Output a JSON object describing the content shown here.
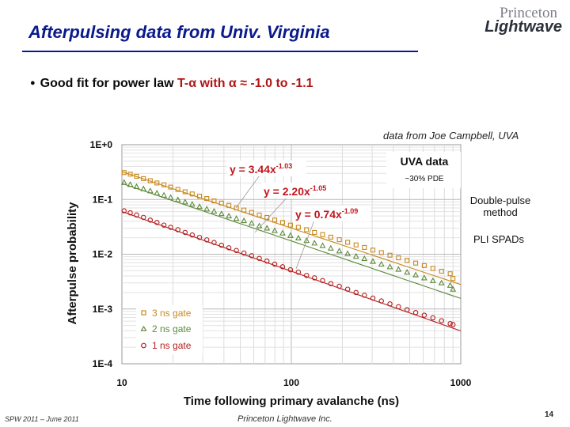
{
  "slide": {
    "title": "Afterpulsing data from Univ. Virginia",
    "logo_line1": "Princeton",
    "logo_line2": "Lightwave",
    "bullet_prefix": "Good fit for power law ",
    "bullet_formula": "T-α with α ≈ -1.0 to -1.1",
    "credit": "data from Joe Campbell, UVA",
    "method": "Double-pulse method",
    "spads": "PLI SPADs",
    "footer_left": "SPW 2011 – June 2011",
    "footer_center": "Princeton Lightwave Inc.",
    "page_number": "14"
  },
  "colors": {
    "title": "#0a1a8c",
    "series_3ns": "#c8891e",
    "series_2ns": "#5c8a38",
    "series_1ns": "#b52020",
    "annotation": "#c0161e"
  },
  "chart_data": {
    "type": "scatter",
    "title": "UVA data",
    "subtitle": "~30% PDE",
    "xlabel": "Time following primary avalanche (ns)",
    "ylabel": "Afterpulse probability",
    "xscale": "log",
    "yscale": "log",
    "xlim": [
      10,
      1000
    ],
    "ylim": [
      0.0001,
      1
    ],
    "xticks": [
      10,
      100,
      1000
    ],
    "xtick_labels": [
      "10",
      "100",
      "1000"
    ],
    "yticks": [
      1,
      0.1,
      0.01,
      0.001,
      0.0001
    ],
    "ytick_labels": [
      "1E+0",
      "1E-1",
      "1E-2",
      "1E-3",
      "1E-4"
    ],
    "grid": true,
    "legend_position": "bottom-left",
    "series": [
      {
        "name": "3 ns gate",
        "marker": "square",
        "fit_label": "y = 3.44x",
        "fit_exponent": "-1.03",
        "fit_a": 3.44,
        "fit_b": -1.03,
        "x": [
          10.3,
          11.2,
          12.2,
          13.4,
          14.7,
          16.1,
          17.7,
          19.4,
          21.4,
          23.6,
          26.0,
          28.7,
          31.7,
          35.0,
          38.7,
          42.8,
          47.4,
          52.5,
          58.3,
          64.7,
          71.8,
          79.8,
          88.8,
          98.8,
          110,
          123,
          137,
          153,
          171,
          192,
          215,
          241,
          270,
          303,
          340,
          382,
          429,
          482,
          542,
          609,
          685,
          770,
          866,
          900
        ],
        "y": [
          0.31,
          0.29,
          0.265,
          0.24,
          0.22,
          0.2,
          0.185,
          0.168,
          0.152,
          0.138,
          0.126,
          0.115,
          0.104,
          0.094,
          0.086,
          0.078,
          0.07,
          0.064,
          0.058,
          0.052,
          0.047,
          0.042,
          0.038,
          0.034,
          0.031,
          0.028,
          0.025,
          0.0228,
          0.0205,
          0.0184,
          0.0165,
          0.0148,
          0.0133,
          0.0119,
          0.0107,
          0.0096,
          0.0086,
          0.0077,
          0.0069,
          0.0062,
          0.0055,
          0.0049,
          0.0044,
          0.0036
        ]
      },
      {
        "name": "2 ns gate",
        "marker": "triangle",
        "fit_label": "y = 2.20x",
        "fit_exponent": "-1.05",
        "fit_a": 2.2,
        "fit_b": -1.05,
        "x": [
          10.3,
          11.2,
          12.2,
          13.4,
          14.7,
          16.1,
          17.7,
          19.4,
          21.4,
          23.6,
          26.0,
          28.7,
          31.7,
          35.0,
          38.7,
          42.8,
          47.4,
          52.5,
          58.3,
          64.7,
          71.8,
          79.8,
          88.8,
          98.8,
          110,
          123,
          137,
          153,
          171,
          192,
          215,
          241,
          270,
          303,
          340,
          382,
          429,
          482,
          542,
          609,
          685,
          770,
          866,
          900
        ],
        "y": [
          0.205,
          0.188,
          0.172,
          0.157,
          0.144,
          0.131,
          0.12,
          0.109,
          0.099,
          0.09,
          0.082,
          0.074,
          0.067,
          0.061,
          0.055,
          0.05,
          0.045,
          0.041,
          0.037,
          0.033,
          0.03,
          0.027,
          0.0244,
          0.022,
          0.0198,
          0.0178,
          0.016,
          0.0144,
          0.0129,
          0.0115,
          0.0103,
          0.0092,
          0.0083,
          0.0074,
          0.0066,
          0.0059,
          0.0053,
          0.0047,
          0.0042,
          0.0037,
          0.0033,
          0.003,
          0.0027,
          0.0023
        ]
      },
      {
        "name": "1 ns gate",
        "marker": "circle",
        "fit_label": "y = 0.74x",
        "fit_exponent": "-1.09",
        "fit_a": 0.74,
        "fit_b": -1.09,
        "x": [
          10.3,
          11.2,
          12.2,
          13.4,
          14.7,
          16.1,
          17.7,
          19.4,
          21.4,
          23.6,
          26.0,
          28.7,
          31.7,
          35.0,
          38.7,
          42.8,
          47.4,
          52.5,
          58.3,
          64.7,
          71.8,
          79.8,
          88.8,
          98.8,
          110,
          123,
          137,
          153,
          171,
          192,
          215,
          241,
          270,
          303,
          340,
          382,
          429,
          482,
          542,
          609,
          685,
          770,
          866,
          900
        ],
        "y": [
          0.062,
          0.057,
          0.052,
          0.047,
          0.042,
          0.038,
          0.034,
          0.031,
          0.028,
          0.025,
          0.0225,
          0.0203,
          0.0183,
          0.0164,
          0.0146,
          0.0131,
          0.0117,
          0.0105,
          0.0094,
          0.0084,
          0.0075,
          0.0066,
          0.0059,
          0.0052,
          0.0047,
          0.0041,
          0.0037,
          0.0033,
          0.0029,
          0.0026,
          0.0023,
          0.002,
          0.00178,
          0.00158,
          0.0014,
          0.00124,
          0.0011,
          0.00097,
          0.00086,
          0.00077,
          0.00069,
          0.00061,
          0.00054,
          0.00052
        ]
      }
    ]
  }
}
